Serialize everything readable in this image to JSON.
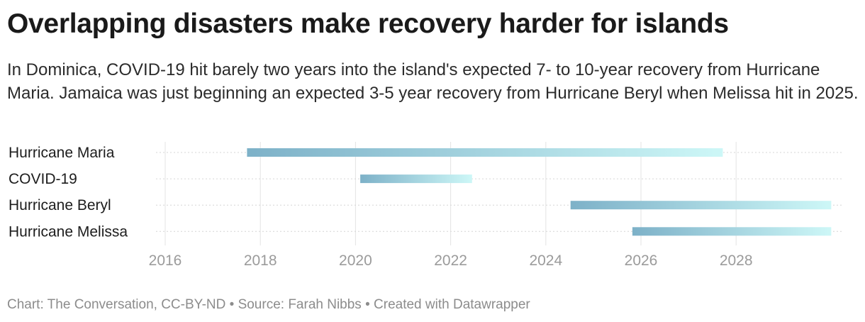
{
  "title": "Overlapping disasters make recovery harder for islands",
  "subtitle": "In Dominica, COVID-19 hit barely two years into the island's expected 7- to 10-year recovery from Hurricane Maria. Jamaica was just beginning an expected 3-5 year recovery from Hurricane Beryl when Melissa hit in 2025.",
  "footer": {
    "credit": "Chart: The Conversation, CC-BY-ND",
    "separator": "•",
    "source": "Source: Farah Nibbs",
    "tool": "Created with Datawrapper"
  },
  "chart_data": {
    "type": "range-bar",
    "xlim": [
      2016,
      2030
    ],
    "x_ticks": [
      "2016",
      "2018",
      "2020",
      "2022",
      "2024",
      "2026",
      "2028"
    ],
    "grid": true,
    "bar_gradient": {
      "start": "#7db1c8",
      "end": "#cdf7f7"
    },
    "series": [
      {
        "name": "Hurricane Maria",
        "start": 2017.72,
        "end": 2027.72
      },
      {
        "name": "COVID-19",
        "start": 2020.1,
        "end": 2022.45
      },
      {
        "name": "Hurricane Beryl",
        "start": 2024.52,
        "end": 2030.0
      },
      {
        "name": "Hurricane Melissa",
        "start": 2025.82,
        "end": 2030.0
      }
    ]
  }
}
